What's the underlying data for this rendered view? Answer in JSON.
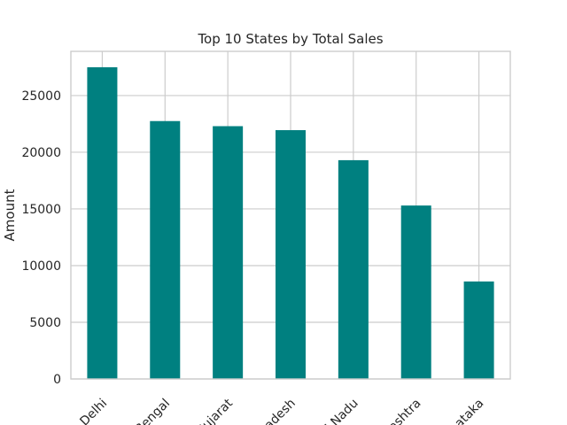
{
  "chart_data": {
    "type": "bar",
    "title": "Top 10 States by Total Sales",
    "xlabel": "",
    "ylabel": "Amount",
    "categories": [
      "Delhi",
      "West Bengal",
      "Gujarat",
      "Madhya Pradesh",
      "Tamil Nadu",
      "Maharashtra",
      "Karnataka"
    ],
    "visible_tick_labels": [
      "Delhi",
      "t Bengal",
      "Gujarat",
      "Pradesh",
      "il Nadu",
      "rashtra",
      "rnataka"
    ],
    "values": [
      27500,
      22750,
      22300,
      21950,
      19300,
      15300,
      8600
    ],
    "ylim": [
      0,
      28900
    ],
    "yticks": [
      0,
      5000,
      10000,
      15000,
      20000,
      25000
    ],
    "ytick_labels": [
      "0",
      "5000",
      "10000",
      "15000",
      "20000",
      "25000"
    ],
    "bar_color": "#008080",
    "grid": true,
    "legend": "none"
  }
}
